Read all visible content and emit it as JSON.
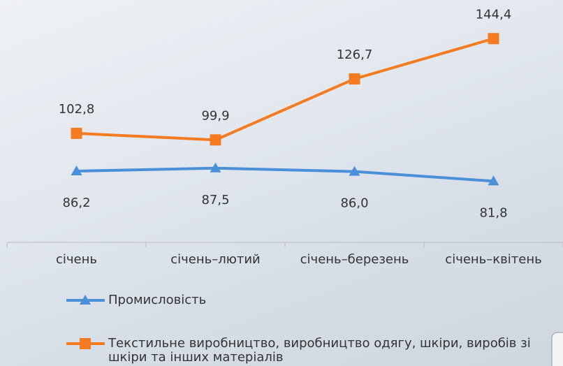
{
  "chart_data": {
    "type": "line",
    "categories": [
      "січень",
      "січень–лютий",
      "січень–березень",
      "січень–квітень"
    ],
    "series": [
      {
        "name": "Промисловість",
        "color": "#4a90d9",
        "marker": "triangle",
        "values": [
          86.2,
          87.5,
          86.0,
          81.8
        ],
        "value_labels": [
          "86,2",
          "87,5",
          "86,0",
          "81,8"
        ]
      },
      {
        "name": "Текстильне виробництво, виробництво одягу, шкіри, виробів зі шкіри та інших матеріалів",
        "color": "#f47b20",
        "marker": "square",
        "values": [
          102.8,
          99.9,
          126.7,
          144.4
        ],
        "value_labels": [
          "102,8",
          "99,9",
          "126,7",
          "144,4"
        ]
      }
    ]
  }
}
